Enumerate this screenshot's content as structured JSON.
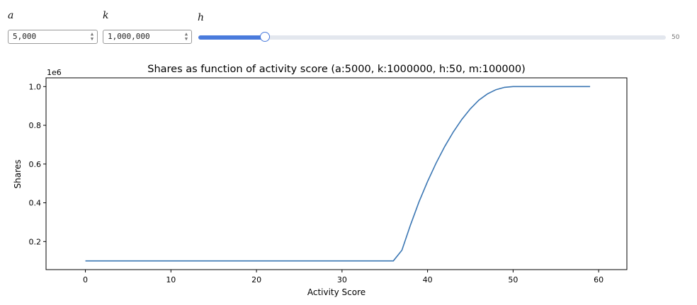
{
  "controls": {
    "a": {
      "label": "a",
      "value": "5,000"
    },
    "k": {
      "label": "k",
      "value": "1,000,000"
    },
    "h": {
      "label": "h",
      "value": 50,
      "min": 0,
      "max": 350,
      "readout": "50"
    }
  },
  "icons": {
    "spin_up": "▲",
    "spin_down": "▼"
  },
  "chart_data": {
    "type": "line",
    "title": "Shares as function of activity score (a:5000, k:1000000, h:50, m:100000)",
    "xlabel": "Activity Score",
    "ylabel": "Shares",
    "y_offset_label": "1e6",
    "xlim": [
      -4.6,
      63.3
    ],
    "ylim": [
      0.055,
      1.045
    ],
    "xticks": [
      0,
      10,
      20,
      30,
      40,
      50,
      60
    ],
    "yticks": [
      0.2,
      0.4,
      0.6,
      0.8,
      1.0
    ],
    "xtick_labels": [
      "0",
      "10",
      "20",
      "30",
      "40",
      "50",
      "60"
    ],
    "ytick_labels": [
      "0.2",
      "0.4",
      "0.6",
      "0.8",
      "1.0"
    ],
    "color": "#3a76b3",
    "series": [
      {
        "x": [
          0,
          36,
          37,
          38,
          39,
          40,
          41,
          42,
          43,
          44,
          45,
          46,
          47,
          48,
          49,
          50,
          59
        ],
        "y": [
          0.1,
          0.1,
          0.155,
          0.285,
          0.405,
          0.51,
          0.605,
          0.69,
          0.765,
          0.83,
          0.885,
          0.93,
          0.962,
          0.984,
          0.996,
          1.0,
          1.0
        ]
      }
    ]
  }
}
